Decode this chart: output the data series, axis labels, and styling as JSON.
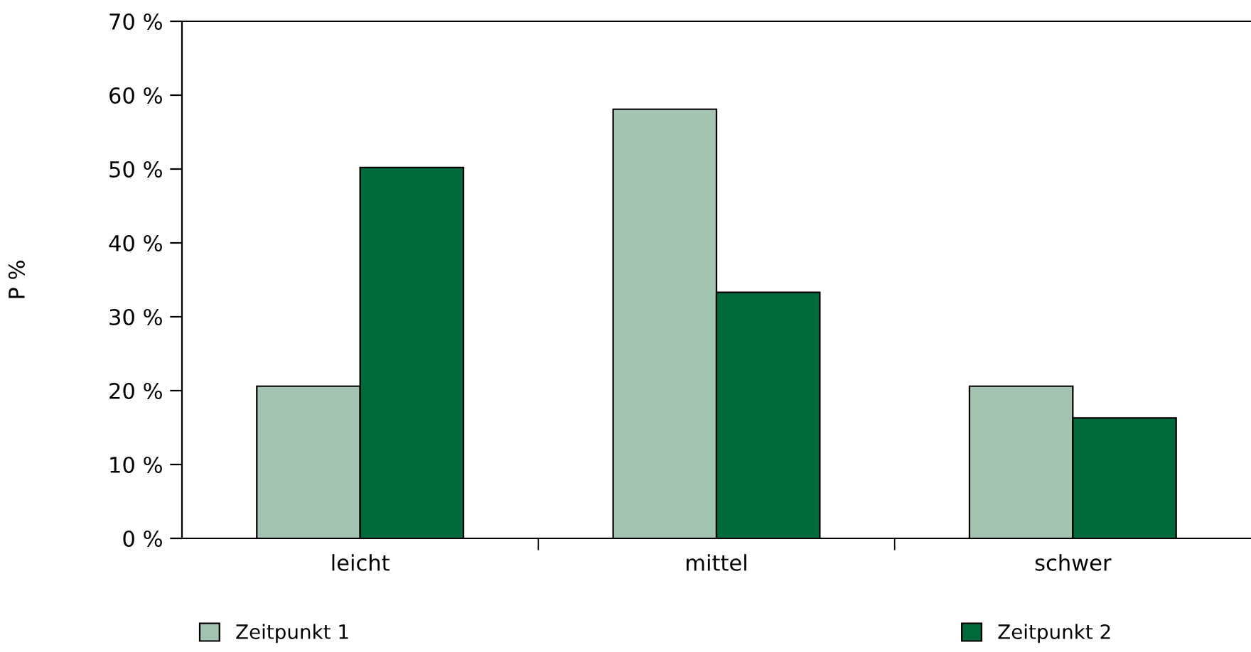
{
  "chart_data": {
    "type": "bar",
    "ylabel": "P %",
    "categories": [
      "leicht",
      "mittel",
      "schwer"
    ],
    "series": [
      {
        "name": "Zeitpunkt 1",
        "color": "#a3c4b3",
        "values": [
          20.6,
          58.1,
          20.6
        ]
      },
      {
        "name": "Zeitpunkt 2",
        "color": "#006b3a",
        "values": [
          50.2,
          33.3,
          16.3
        ]
      }
    ],
    "ylim": [
      0,
      70
    ],
    "yticks": [
      {
        "value": 0,
        "label": "0 %"
      },
      {
        "value": 10,
        "label": "10 %"
      },
      {
        "value": 20,
        "label": "20 %"
      },
      {
        "value": 30,
        "label": "30 %"
      },
      {
        "value": 40,
        "label": "40 %"
      },
      {
        "value": 50,
        "label": "50 %"
      },
      {
        "value": 60,
        "label": "60 %"
      },
      {
        "value": 70,
        "label": "70 %"
      }
    ],
    "grid": false,
    "legend": "bottom"
  }
}
